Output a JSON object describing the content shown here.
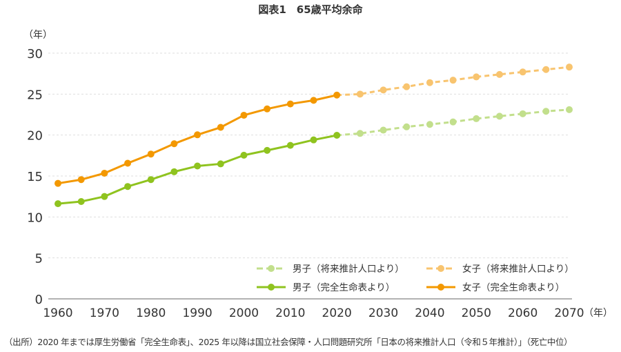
{
  "chart_data": {
    "type": "line",
    "title": "図表1　65歳平均余命",
    "ylabel": "（年）",
    "xlabel": "（年）",
    "xlim": [
      1960,
      2070
    ],
    "ylim": [
      0,
      30
    ],
    "xticks": [
      1960,
      1970,
      1980,
      1990,
      2000,
      2010,
      2020,
      2030,
      2040,
      2050,
      2060,
      2070
    ],
    "yticks": [
      0,
      5,
      10,
      15,
      20,
      25,
      30
    ],
    "grid": "horizontal dashed",
    "legend_position": "bottom-right",
    "series": [
      {
        "name": "男子（完全生命表より）",
        "color": "#8fc31f",
        "style": "solid",
        "x": [
          1960,
          1965,
          1970,
          1975,
          1980,
          1985,
          1990,
          1995,
          2000,
          2005,
          2010,
          2015,
          2020
        ],
        "values": [
          11.62,
          11.88,
          12.5,
          13.72,
          14.56,
          15.52,
          16.22,
          16.48,
          17.54,
          18.13,
          18.74,
          19.41,
          19.97
        ]
      },
      {
        "name": "女子（完全生命表より）",
        "color": "#f39800",
        "style": "solid",
        "x": [
          1960,
          1965,
          1970,
          1975,
          1980,
          1985,
          1990,
          1995,
          2000,
          2005,
          2010,
          2015,
          2020
        ],
        "values": [
          14.1,
          14.56,
          15.34,
          16.56,
          17.68,
          18.94,
          20.03,
          20.94,
          22.42,
          23.19,
          23.8,
          24.24,
          24.88
        ]
      },
      {
        "name": "男子（将来推計人口より）",
        "color": "#c2df8c",
        "style": "dashed",
        "x": [
          2025,
          2030,
          2035,
          2040,
          2045,
          2050,
          2055,
          2060,
          2065,
          2070
        ],
        "values": [
          20.2,
          20.6,
          21.0,
          21.3,
          21.6,
          22.0,
          22.3,
          22.6,
          22.9,
          23.1
        ]
      },
      {
        "name": "女子（将来推計人口より）",
        "color": "#f8c46f",
        "style": "dashed",
        "x": [
          2025,
          2030,
          2035,
          2040,
          2045,
          2050,
          2055,
          2060,
          2065,
          2070
        ],
        "values": [
          25.0,
          25.5,
          25.9,
          26.4,
          26.7,
          27.1,
          27.4,
          27.7,
          28.0,
          28.3
        ]
      }
    ]
  },
  "source": "（出所）2020 年までは厚生労働省「完全生命表」、2025 年以降は国立社会保障・人口問題研究所「日本の将来推計人口（令和５年推計）」（死亡中位）"
}
